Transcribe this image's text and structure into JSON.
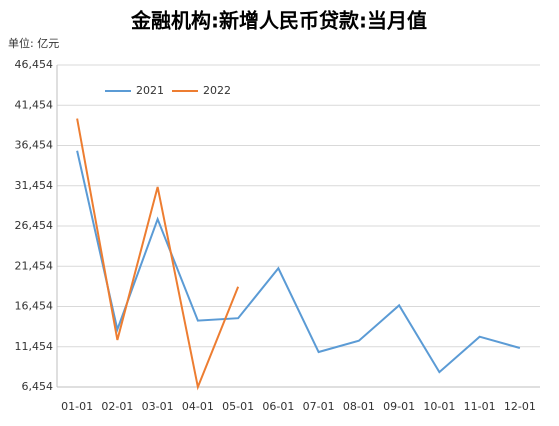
{
  "chart_data": {
    "type": "line",
    "title": "金融机构:新增人民币贷款:当月值",
    "unit_label": "单位:  亿元",
    "categories": [
      "01-01",
      "02-01",
      "03-01",
      "04-01",
      "05-01",
      "06-01",
      "07-01",
      "08-01",
      "09-01",
      "10-01",
      "11-01",
      "12-01"
    ],
    "series": [
      {
        "name": "2021",
        "color": "#5b9bd5",
        "values": [
          35800,
          13600,
          27300,
          14700,
          15000,
          21200,
          10800,
          12200,
          16600,
          8300,
          12700,
          11300
        ]
      },
      {
        "name": "2022",
        "color": "#ed7d31",
        "values": [
          39800,
          12300,
          31300,
          6454,
          18900,
          null,
          null,
          null,
          null,
          null,
          null,
          null
        ]
      }
    ],
    "ylim": [
      6454,
      46454
    ],
    "yticks": [
      {
        "value": 6454,
        "label": "6,454"
      },
      {
        "value": 11454,
        "label": "11,454"
      },
      {
        "value": 16454,
        "label": "16,454"
      },
      {
        "value": 21454,
        "label": "21,454"
      },
      {
        "value": 26454,
        "label": "26,454"
      },
      {
        "value": 31454,
        "label": "31,454"
      },
      {
        "value": 36454,
        "label": "36,454"
      },
      {
        "value": 41454,
        "label": "41,454"
      },
      {
        "value": 46454,
        "label": "46,454"
      }
    ],
    "grid": true,
    "legend_position": "top-left"
  }
}
